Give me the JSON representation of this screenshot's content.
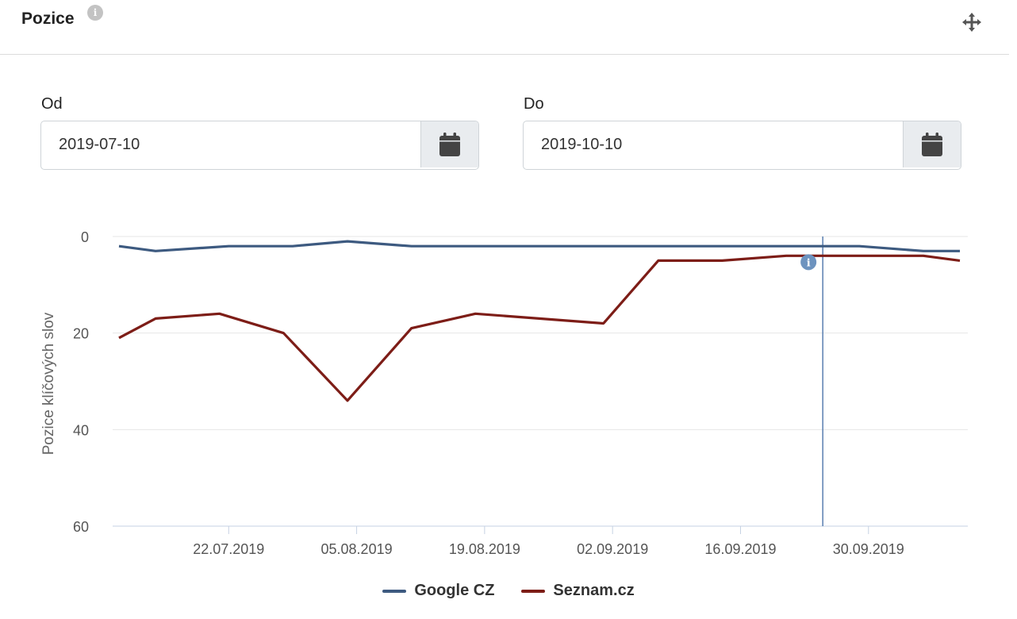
{
  "header": {
    "title": "Pozice",
    "info_icon": "info-icon",
    "move_icon": "move-arrows-icon"
  },
  "date_from": {
    "label": "Od",
    "value": "2019-07-10",
    "icon": "calendar-icon"
  },
  "date_to": {
    "label": "Do",
    "value": "2019-10-10",
    "icon": "calendar-icon"
  },
  "chart_data": {
    "type": "line",
    "ylabel": "Pozice klíčových slov",
    "xlabel": "",
    "ylim": [
      0,
      60
    ],
    "y_reversed": true,
    "y_ticks": [
      0,
      20,
      40,
      60
    ],
    "x_range": [
      "2019-07-10",
      "2019-10-10"
    ],
    "x_ticks": [
      "22.07.2019",
      "05.08.2019",
      "19.08.2019",
      "02.09.2019",
      "16.09.2019",
      "30.09.2019"
    ],
    "grid": true,
    "legend_position": "bottom",
    "marker_date": "2019-09-25",
    "series": [
      {
        "name": "Google CZ",
        "color": "#3d5a80",
        "points": [
          [
            "2019-07-10",
            2
          ],
          [
            "2019-07-14",
            3
          ],
          [
            "2019-07-22",
            2
          ],
          [
            "2019-07-29",
            2
          ],
          [
            "2019-08-04",
            1
          ],
          [
            "2019-08-11",
            2
          ],
          [
            "2019-09-01",
            2
          ],
          [
            "2019-09-25",
            2
          ],
          [
            "2019-09-29",
            2
          ],
          [
            "2019-10-06",
            3
          ],
          [
            "2019-10-10",
            3
          ]
        ]
      },
      {
        "name": "Seznam.cz",
        "color": "#7d1d17",
        "points": [
          [
            "2019-07-10",
            21
          ],
          [
            "2019-07-14",
            17
          ],
          [
            "2019-07-21",
            16
          ],
          [
            "2019-07-28",
            20
          ],
          [
            "2019-08-04",
            34
          ],
          [
            "2019-08-11",
            19
          ],
          [
            "2019-08-18",
            16
          ],
          [
            "2019-09-01",
            18
          ],
          [
            "2019-09-07",
            5
          ],
          [
            "2019-09-14",
            5
          ],
          [
            "2019-09-21",
            4
          ],
          [
            "2019-10-06",
            4
          ],
          [
            "2019-10-10",
            5
          ]
        ]
      }
    ],
    "annotation_icon": "info-icon"
  }
}
